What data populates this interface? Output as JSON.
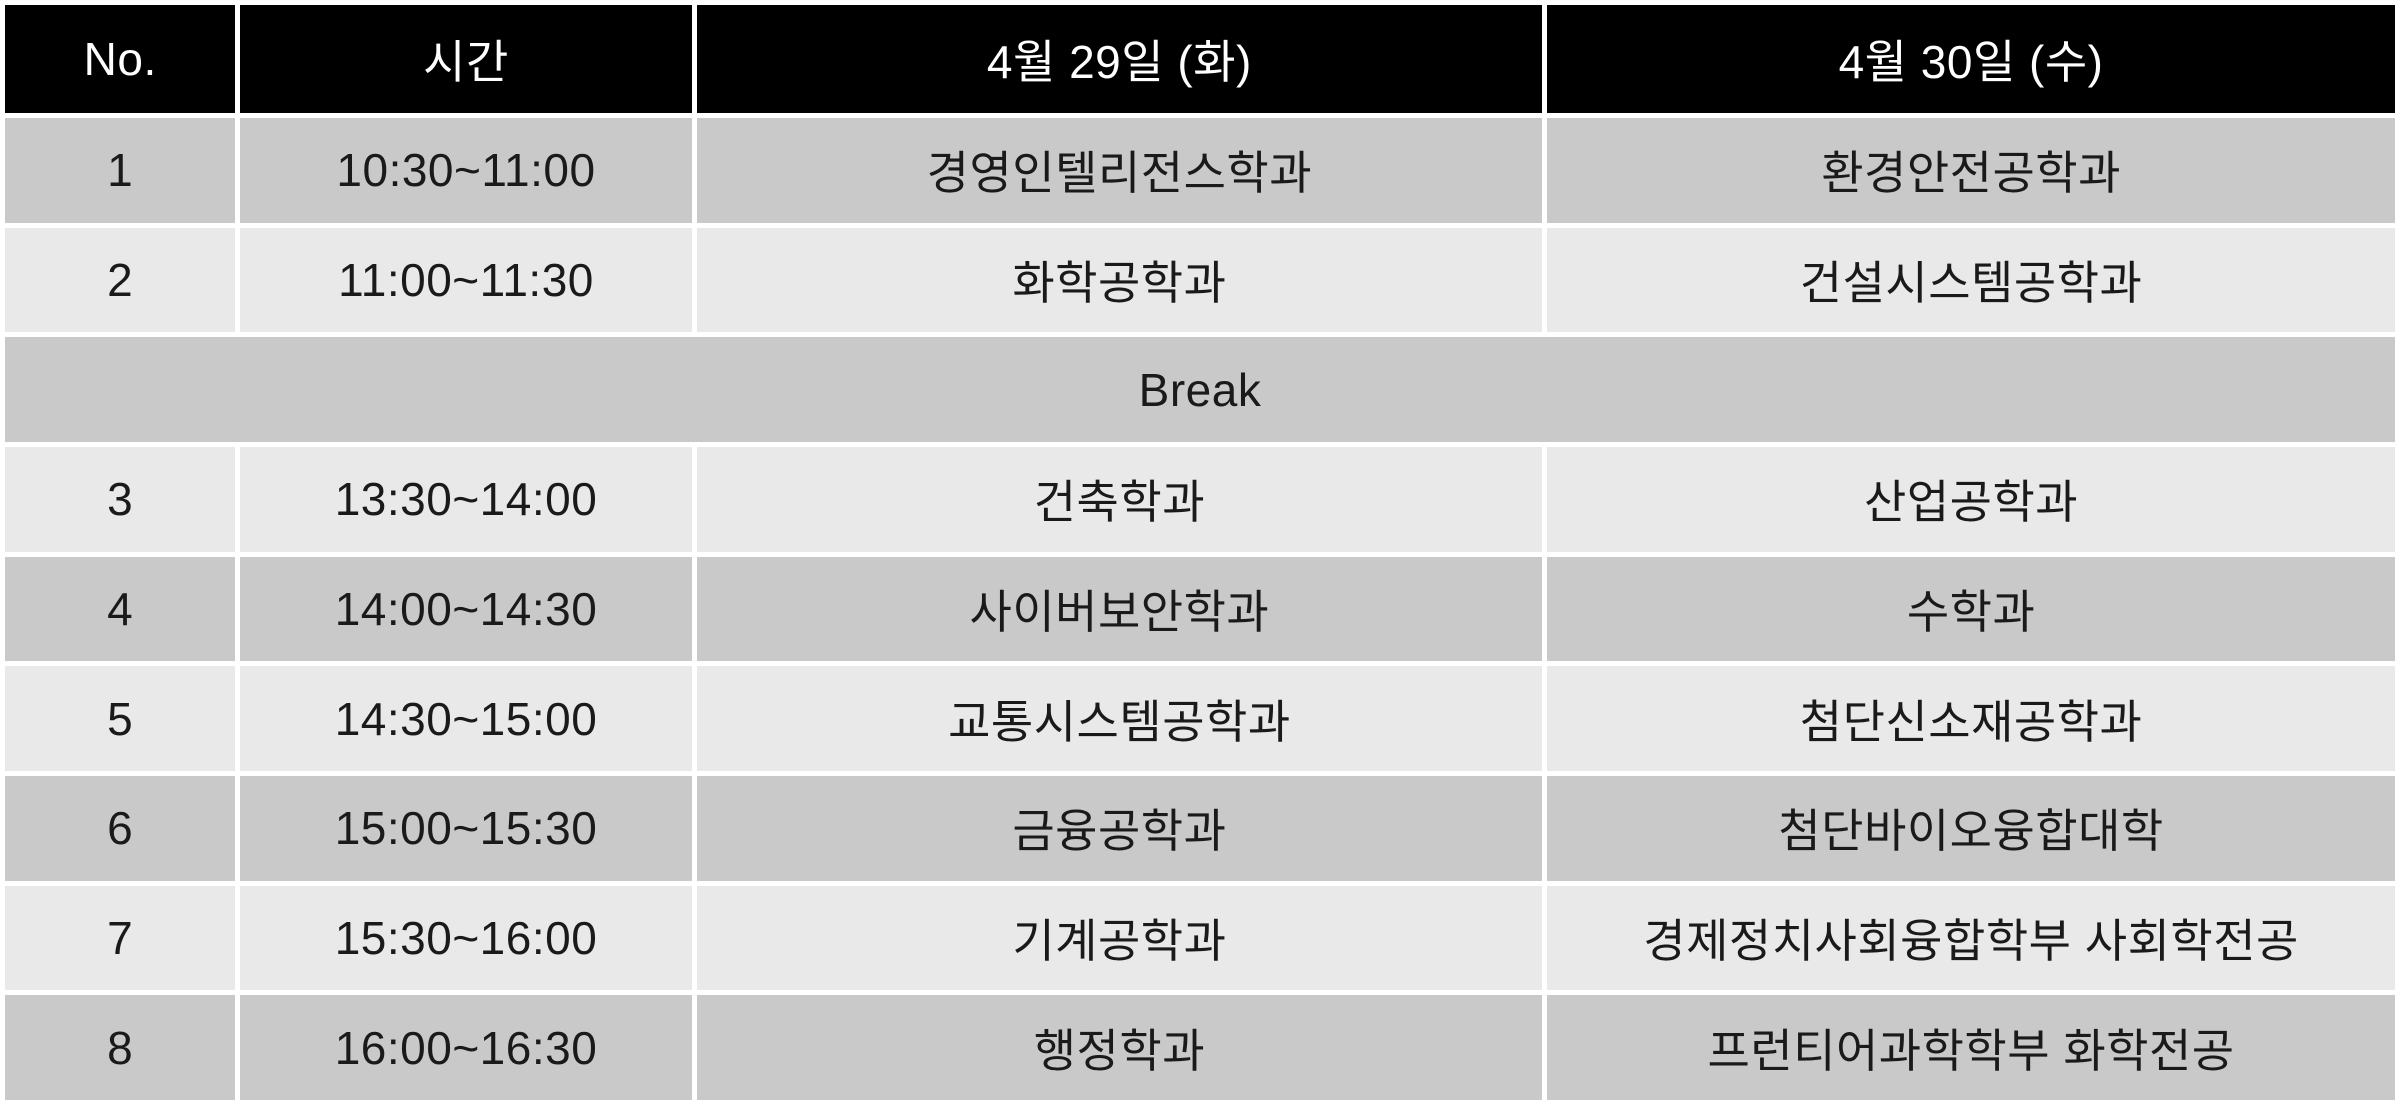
{
  "table": {
    "title": "interview-schedule",
    "columns": [
      {
        "key": "no",
        "label": "No."
      },
      {
        "key": "time",
        "label": "시간"
      },
      {
        "key": "day1",
        "label": "4월 29일 (화)"
      },
      {
        "key": "day2",
        "label": "4월 30일 (수)"
      }
    ],
    "rows": [
      {
        "type": "session",
        "no": "1",
        "time": "10:30~11:00",
        "day1": "경영인텔리전스학과",
        "day2": "환경안전공학과",
        "shade": "dark"
      },
      {
        "type": "session",
        "no": "2",
        "time": "11:00~11:30",
        "day1": "화학공학과",
        "day2": "건설시스템공학과",
        "shade": "light"
      },
      {
        "type": "break",
        "label": "Break",
        "shade": "dark"
      },
      {
        "type": "session",
        "no": "3",
        "time": "13:30~14:00",
        "day1": "건축학과",
        "day2": "산업공학과",
        "shade": "light"
      },
      {
        "type": "session",
        "no": "4",
        "time": "14:00~14:30",
        "day1": "사이버보안학과",
        "day2": "수학과",
        "shade": "dark"
      },
      {
        "type": "session",
        "no": "5",
        "time": "14:30~15:00",
        "day1": "교통시스템공학과",
        "day2": "첨단신소재공학과",
        "shade": "light"
      },
      {
        "type": "session",
        "no": "6",
        "time": "15:00~15:30",
        "day1": "금융공학과",
        "day2": "첨단바이오융합대학",
        "shade": "dark"
      },
      {
        "type": "session",
        "no": "7",
        "time": "15:30~16:00",
        "day1": "기계공학과",
        "day2": "경제정치사회융합학부 사회학전공",
        "shade": "light"
      },
      {
        "type": "session",
        "no": "8",
        "time": "16:00~16:30",
        "day1": "행정학과",
        "day2": "프런티어과학학부 화학전공",
        "shade": "dark"
      }
    ],
    "colors": {
      "header_bg": "#000000",
      "header_text": "#ffffff",
      "row_dark": "#c9c9c9",
      "row_light": "#e9e9e9",
      "grid": "#ffffff",
      "text": "#1a1a1a"
    }
  }
}
